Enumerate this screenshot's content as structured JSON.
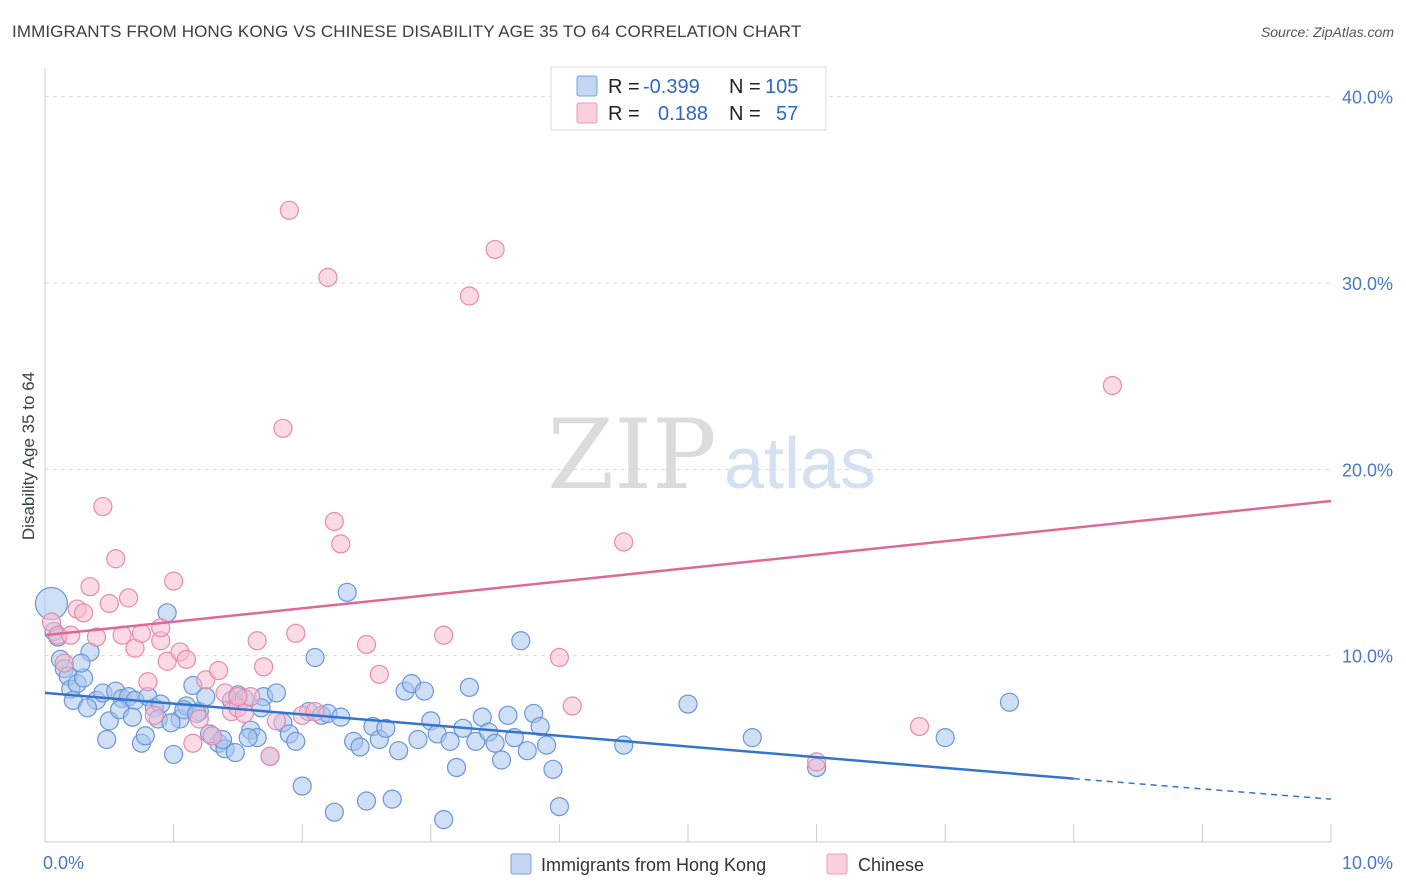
{
  "header": {
    "title": "IMMIGRANTS FROM HONG KONG VS CHINESE DISABILITY AGE 35 TO 64 CORRELATION CHART",
    "source": "Source: ZipAtlas.com"
  },
  "watermark": {
    "zip": "ZIP",
    "atlas": "atlas"
  },
  "stats": [
    {
      "r_label": "R =",
      "r_value": "-0.399",
      "n_label": "N =",
      "n_value": "105",
      "color": "#a8c4ec",
      "stroke": "#6a96d8"
    },
    {
      "r_label": "R =",
      "r_value": "0.188",
      "n_label": "N =",
      "n_value": "57",
      "color": "#f7bcd0",
      "stroke": "#e88aab"
    }
  ],
  "chart_data": {
    "type": "scatter",
    "title": "IMMIGRANTS FROM HONG KONG VS CHINESE DISABILITY AGE 35 TO 64 CORRELATION CHART",
    "xlabel": "",
    "ylabel": "Disability Age 35 to 64",
    "xlim": [
      0,
      10
    ],
    "ylim": [
      0,
      41
    ],
    "x_tick_labels": [
      "0.0%",
      "10.0%"
    ],
    "y_ticks": [
      10,
      20,
      30,
      40
    ],
    "y_tick_labels": [
      "10.0%",
      "20.0%",
      "30.0%",
      "40.0%"
    ],
    "grid": true,
    "legend_position": "bottom-center",
    "series": [
      {
        "name": "Immigrants from Hong Kong",
        "color": "#a8c4ec",
        "stroke": "#6a96d8",
        "line_color": "#3474d0",
        "trend": {
          "x0": 0,
          "y0": 8.0,
          "x1": 8.0,
          "y1": 3.4,
          "dash_to_x": 10,
          "dash_to_y": 2.3
        },
        "points": [
          [
            0.05,
            12.8
          ],
          [
            0.07,
            11.3
          ],
          [
            0.12,
            9.8
          ],
          [
            0.15,
            9.3
          ],
          [
            0.18,
            8.9
          ],
          [
            0.2,
            8.2
          ],
          [
            0.25,
            8.5
          ],
          [
            0.3,
            8.8
          ],
          [
            0.35,
            10.2
          ],
          [
            0.4,
            7.6
          ],
          [
            0.45,
            8.0
          ],
          [
            0.5,
            6.5
          ],
          [
            0.55,
            8.1
          ],
          [
            0.6,
            7.7
          ],
          [
            0.65,
            7.8
          ],
          [
            0.7,
            7.6
          ],
          [
            0.75,
            5.3
          ],
          [
            0.8,
            7.8
          ],
          [
            0.85,
            7.2
          ],
          [
            0.9,
            7.4
          ],
          [
            0.95,
            12.3
          ],
          [
            1.0,
            4.7
          ],
          [
            1.05,
            6.6
          ],
          [
            1.1,
            7.3
          ],
          [
            1.15,
            8.4
          ],
          [
            1.2,
            7.0
          ],
          [
            1.25,
            7.8
          ],
          [
            1.3,
            5.7
          ],
          [
            1.35,
            5.3
          ],
          [
            1.4,
            5.0
          ],
          [
            1.45,
            7.6
          ],
          [
            1.5,
            7.9
          ],
          [
            1.55,
            7.7
          ],
          [
            1.6,
            6.0
          ],
          [
            1.65,
            5.6
          ],
          [
            1.7,
            7.8
          ],
          [
            1.75,
            4.6
          ],
          [
            1.8,
            8.0
          ],
          [
            1.85,
            6.4
          ],
          [
            1.9,
            5.8
          ],
          [
            1.95,
            5.4
          ],
          [
            2.0,
            3.0
          ],
          [
            2.05,
            7.0
          ],
          [
            2.1,
            9.9
          ],
          [
            2.15,
            6.8
          ],
          [
            2.2,
            6.9
          ],
          [
            2.25,
            1.6
          ],
          [
            2.3,
            6.7
          ],
          [
            2.35,
            13.4
          ],
          [
            2.4,
            5.4
          ],
          [
            2.45,
            5.1
          ],
          [
            2.5,
            2.2
          ],
          [
            2.55,
            6.2
          ],
          [
            2.6,
            5.5
          ],
          [
            2.65,
            6.1
          ],
          [
            2.7,
            2.3
          ],
          [
            2.75,
            4.9
          ],
          [
            2.8,
            8.1
          ],
          [
            2.85,
            8.5
          ],
          [
            2.9,
            5.5
          ],
          [
            2.95,
            8.1
          ],
          [
            3.0,
            6.5
          ],
          [
            3.05,
            5.8
          ],
          [
            3.1,
            1.2
          ],
          [
            3.15,
            5.4
          ],
          [
            3.2,
            4.0
          ],
          [
            3.25,
            6.1
          ],
          [
            3.3,
            8.3
          ],
          [
            3.35,
            5.4
          ],
          [
            3.4,
            6.7
          ],
          [
            3.45,
            5.9
          ],
          [
            3.5,
            5.3
          ],
          [
            3.55,
            4.4
          ],
          [
            3.6,
            6.8
          ],
          [
            3.65,
            5.6
          ],
          [
            3.7,
            10.8
          ],
          [
            3.75,
            4.9
          ],
          [
            3.8,
            6.9
          ],
          [
            3.85,
            6.2
          ],
          [
            3.9,
            5.2
          ],
          [
            3.95,
            3.9
          ],
          [
            4.0,
            1.9
          ],
          [
            4.5,
            5.2
          ],
          [
            5.0,
            7.4
          ],
          [
            5.5,
            5.6
          ],
          [
            6.0,
            4.0
          ],
          [
            7.0,
            5.6
          ],
          [
            7.5,
            7.5
          ],
          [
            0.1,
            11.0
          ],
          [
            0.22,
            7.6
          ],
          [
            0.28,
            9.6
          ],
          [
            0.33,
            7.2
          ],
          [
            0.48,
            5.5
          ],
          [
            0.58,
            7.1
          ],
          [
            0.68,
            6.7
          ],
          [
            0.78,
            5.7
          ],
          [
            0.88,
            6.6
          ],
          [
            0.98,
            6.4
          ],
          [
            1.08,
            7.1
          ],
          [
            1.18,
            6.9
          ],
          [
            1.28,
            5.8
          ],
          [
            1.38,
            5.5
          ],
          [
            1.48,
            4.8
          ],
          [
            1.58,
            5.6
          ],
          [
            1.68,
            7.2
          ]
        ]
      },
      {
        "name": "Chinese",
        "color": "#f7bcd0",
        "stroke": "#e88aab",
        "line_color": "#e06895",
        "trend": {
          "x0": 0,
          "y0": 11.1,
          "x1": 10,
          "y1": 18.3
        },
        "points": [
          [
            0.05,
            11.8
          ],
          [
            0.1,
            11.1
          ],
          [
            0.15,
            9.6
          ],
          [
            0.2,
            11.1
          ],
          [
            0.25,
            12.5
          ],
          [
            0.3,
            12.3
          ],
          [
            0.35,
            13.7
          ],
          [
            0.4,
            11.0
          ],
          [
            0.45,
            18.0
          ],
          [
            0.5,
            12.8
          ],
          [
            0.55,
            15.2
          ],
          [
            0.6,
            11.1
          ],
          [
            0.65,
            13.1
          ],
          [
            0.7,
            10.4
          ],
          [
            0.75,
            11.2
          ],
          [
            0.8,
            8.6
          ],
          [
            0.85,
            6.8
          ],
          [
            0.9,
            10.8
          ],
          [
            0.95,
            9.7
          ],
          [
            1.0,
            14.0
          ],
          [
            1.05,
            10.2
          ],
          [
            1.1,
            9.8
          ],
          [
            1.15,
            5.3
          ],
          [
            1.2,
            6.6
          ],
          [
            1.25,
            8.7
          ],
          [
            1.3,
            5.7
          ],
          [
            1.35,
            9.2
          ],
          [
            1.4,
            8.0
          ],
          [
            1.45,
            7.0
          ],
          [
            1.5,
            7.2
          ],
          [
            1.55,
            6.9
          ],
          [
            1.6,
            7.8
          ],
          [
            1.65,
            10.8
          ],
          [
            1.7,
            9.4
          ],
          [
            1.75,
            4.6
          ],
          [
            1.8,
            6.5
          ],
          [
            1.85,
            22.2
          ],
          [
            1.9,
            33.9
          ],
          [
            1.95,
            11.2
          ],
          [
            2.0,
            6.8
          ],
          [
            2.1,
            7.0
          ],
          [
            2.2,
            30.3
          ],
          [
            2.25,
            17.2
          ],
          [
            2.3,
            16.0
          ],
          [
            2.5,
            10.6
          ],
          [
            2.6,
            9.0
          ],
          [
            3.1,
            11.1
          ],
          [
            3.3,
            29.3
          ],
          [
            3.5,
            31.8
          ],
          [
            4.0,
            9.9
          ],
          [
            4.1,
            7.3
          ],
          [
            4.5,
            16.1
          ],
          [
            6.0,
            4.3
          ],
          [
            6.8,
            6.2
          ],
          [
            8.3,
            24.5
          ],
          [
            0.9,
            11.5
          ],
          [
            1.5,
            7.8
          ]
        ]
      }
    ]
  }
}
